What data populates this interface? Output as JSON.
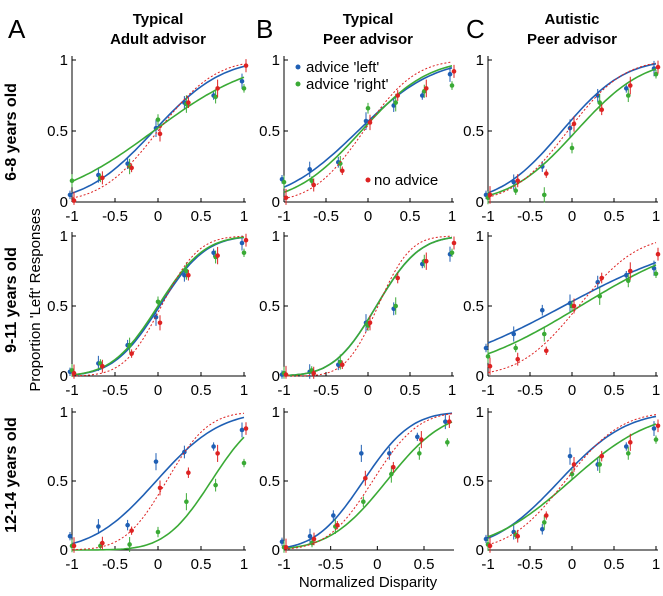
{
  "figure": {
    "panel_letters": [
      "A",
      "B",
      "C"
    ],
    "column_titles": [
      [
        "Typical",
        "Adult advisor"
      ],
      [
        "Typical",
        "Peer advisor"
      ],
      [
        "Autistic",
        "Peer advisor"
      ]
    ],
    "row_labels": [
      "6-8 years old",
      "9-11 years old",
      "12-14 years old"
    ],
    "xlabel": "Normalized Disparity",
    "ylabel": "Proportion 'Left' Responses",
    "x_ticks": [
      "-1",
      "-0.5",
      "0",
      "0.5",
      "1"
    ],
    "y_ticks": [
      "0",
      "0.5",
      "1"
    ],
    "legend": {
      "left": "advice 'left'",
      "right": "advice 'right'",
      "none": "no advice"
    }
  },
  "colors": {
    "left": "#1f5fb4",
    "right": "#3aaa35",
    "none": "#dd2222",
    "axis": "#000000"
  },
  "chart_data": [
    {
      "type": "line",
      "row": 0,
      "col": 0,
      "xlim": [
        -1,
        1
      ],
      "ylim": [
        0,
        1
      ],
      "x": [
        -1,
        -0.67,
        -0.33,
        0,
        0.33,
        0.67,
        1
      ],
      "series": [
        {
          "name": "advice 'left'",
          "values": [
            0.05,
            0.19,
            0.27,
            0.52,
            0.7,
            0.75,
            0.85
          ],
          "fit": {
            "mu": -0.05,
            "sigma": 0.62
          }
        },
        {
          "name": "advice 'right'",
          "values": [
            0.15,
            0.17,
            0.25,
            0.58,
            0.69,
            0.74,
            0.8
          ],
          "fit": {
            "mu": -0.05,
            "sigma": 0.9
          }
        },
        {
          "name": "no advice",
          "values": [
            0.01,
            0.17,
            0.24,
            0.48,
            0.7,
            0.8,
            0.96
          ],
          "fit": {
            "mu": 0.0,
            "sigma": 0.52
          }
        }
      ]
    },
    {
      "type": "line",
      "row": 0,
      "col": 1,
      "xlim": [
        -1,
        1
      ],
      "ylim": [
        0,
        1
      ],
      "x": [
        -1,
        -0.67,
        -0.33,
        0,
        0.33,
        0.67,
        1
      ],
      "series": [
        {
          "name": "advice 'left'",
          "values": [
            0.16,
            0.23,
            0.28,
            0.57,
            0.68,
            0.75,
            0.9
          ],
          "fit": {
            "mu": -0.12,
            "sigma": 0.7
          }
        },
        {
          "name": "advice 'right'",
          "values": [
            0.14,
            0.15,
            0.27,
            0.66,
            0.7,
            0.78,
            0.82
          ],
          "fit": {
            "mu": -0.08,
            "sigma": 0.62
          }
        },
        {
          "name": "no advice",
          "values": [
            0.03,
            0.12,
            0.22,
            0.56,
            0.75,
            0.8,
            0.92
          ],
          "fit": {
            "mu": -0.05,
            "sigma": 0.48
          }
        }
      ]
    },
    {
      "type": "line",
      "row": 0,
      "col": 2,
      "xlim": [
        -1,
        1
      ],
      "ylim": [
        0,
        1
      ],
      "x": [
        -1,
        -0.67,
        -0.33,
        0,
        0.33,
        0.67,
        1
      ],
      "series": [
        {
          "name": "advice 'left'",
          "values": [
            0.05,
            0.14,
            0.25,
            0.52,
            0.75,
            0.8,
            0.94
          ],
          "fit": {
            "mu": -0.12,
            "sigma": 0.58
          }
        },
        {
          "name": "advice 'right'",
          "values": [
            0.03,
            0.08,
            0.05,
            0.38,
            0.7,
            0.75,
            0.9
          ],
          "fit": {
            "mu": 0.05,
            "sigma": 0.62
          }
        },
        {
          "name": "no advice",
          "values": [
            0.05,
            0.15,
            0.2,
            0.55,
            0.65,
            0.82,
            0.95
          ],
          "fit": {
            "mu": -0.05,
            "sigma": 0.52
          }
        }
      ]
    },
    {
      "type": "line",
      "row": 1,
      "col": 0,
      "xlim": [
        -1,
        1
      ],
      "ylim": [
        0,
        1
      ],
      "x": [
        -1,
        -0.67,
        -0.33,
        0,
        0.33,
        0.67,
        1
      ],
      "series": [
        {
          "name": "advice 'left'",
          "values": [
            0.03,
            0.09,
            0.22,
            0.42,
            0.72,
            0.88,
            0.95
          ],
          "fit": {
            "mu": 0.02,
            "sigma": 0.42
          }
        },
        {
          "name": "advice 'right'",
          "values": [
            0.04,
            0.09,
            0.22,
            0.53,
            0.75,
            0.85,
            0.88
          ],
          "fit": {
            "mu": 0.0,
            "sigma": 0.42
          }
        },
        {
          "name": "no advice",
          "values": [
            0.02,
            0.07,
            0.16,
            0.38,
            0.72,
            0.86,
            0.97
          ],
          "fit": {
            "mu": 0.04,
            "sigma": 0.34
          }
        }
      ]
    },
    {
      "type": "line",
      "row": 1,
      "col": 1,
      "xlim": [
        -1,
        1
      ],
      "ylim": [
        0,
        1
      ],
      "x": [
        -1,
        -0.67,
        -0.33,
        0,
        0.33,
        0.67,
        1
      ],
      "series": [
        {
          "name": "advice 'left'",
          "values": [
            0.01,
            0.03,
            0.08,
            0.38,
            0.48,
            0.8,
            0.87
          ],
          "fit": {
            "mu": 0.1,
            "sigma": 0.4
          }
        },
        {
          "name": "advice 'right'",
          "values": [
            0.02,
            0.04,
            0.1,
            0.36,
            0.5,
            0.82,
            0.88
          ],
          "fit": {
            "mu": 0.1,
            "sigma": 0.4
          }
        },
        {
          "name": "no advice",
          "values": [
            0.01,
            0.02,
            0.08,
            0.38,
            0.7,
            0.82,
            0.95
          ],
          "fit": {
            "mu": 0.12,
            "sigma": 0.3
          }
        }
      ]
    },
    {
      "type": "line",
      "row": 1,
      "col": 2,
      "xlim": [
        -1,
        1
      ],
      "ylim": [
        0,
        1
      ],
      "x": [
        -1,
        -0.67,
        -0.33,
        0,
        0.33,
        0.67,
        1
      ],
      "series": [
        {
          "name": "advice 'left'",
          "values": [
            0.2,
            0.3,
            0.47,
            0.52,
            0.67,
            0.72,
            0.77
          ],
          "fit": {
            "mu": -0.1,
            "sigma": 1.25
          }
        },
        {
          "name": "advice 'right'",
          "values": [
            0.14,
            0.2,
            0.3,
            0.5,
            0.57,
            0.68,
            0.73
          ],
          "fit": {
            "mu": 0.1,
            "sigma": 1.1
          }
        },
        {
          "name": "no advice",
          "values": [
            0.07,
            0.12,
            0.18,
            0.5,
            0.7,
            0.75,
            0.87
          ],
          "fit": {
            "mu": 0.08,
            "sigma": 0.55
          }
        }
      ]
    },
    {
      "type": "line",
      "row": 2,
      "col": 0,
      "xlim": [
        -1,
        1
      ],
      "ylim": [
        0,
        1
      ],
      "x": [
        -1,
        -0.67,
        -0.33,
        0,
        0.33,
        0.67,
        1
      ],
      "series": [
        {
          "name": "advice 'left'",
          "values": [
            0.1,
            0.17,
            0.18,
            0.64,
            0.71,
            0.75,
            0.87
          ],
          "fit": {
            "mu": -0.02,
            "sigma": 0.58
          }
        },
        {
          "name": "advice 'right'",
          "values": [
            0.03,
            0.03,
            0.04,
            0.13,
            0.35,
            0.47,
            0.63
          ],
          "fit": {
            "mu": 0.62,
            "sigma": 0.42
          }
        },
        {
          "name": "no advice",
          "values": [
            0.03,
            0.05,
            0.14,
            0.45,
            0.56,
            0.7,
            0.88
          ],
          "fit": {
            "mu": 0.1,
            "sigma": 0.38
          }
        }
      ]
    },
    {
      "type": "line",
      "row": 2,
      "col": 1,
      "xlim": [
        -1,
        0.8
      ],
      "ylim": [
        0,
        1
      ],
      "x": [
        -1,
        -0.7,
        -0.45,
        -0.15,
        0.15,
        0.45,
        0.75
      ],
      "series": [
        {
          "name": "advice 'left'",
          "values": [
            0.06,
            0.1,
            0.25,
            0.7,
            0.7,
            0.82,
            0.93
          ],
          "fit": {
            "mu": -0.15,
            "sigma": 0.4
          }
        },
        {
          "name": "advice 'right'",
          "values": [
            0.02,
            0.05,
            0.17,
            0.35,
            0.55,
            0.7,
            0.78
          ],
          "fit": {
            "mu": 0.1,
            "sigma": 0.48
          }
        },
        {
          "name": "no advice",
          "values": [
            0.02,
            0.08,
            0.18,
            0.52,
            0.6,
            0.8,
            0.93
          ],
          "fit": {
            "mu": -0.05,
            "sigma": 0.38
          }
        }
      ]
    },
    {
      "type": "line",
      "row": 2,
      "col": 2,
      "xlim": [
        -1,
        1
      ],
      "ylim": [
        0,
        1
      ],
      "x": [
        -1,
        -0.67,
        -0.33,
        0,
        0.33,
        0.67,
        1
      ],
      "series": [
        {
          "name": "advice 'left'",
          "values": [
            0.08,
            0.13,
            0.15,
            0.68,
            0.62,
            0.75,
            0.88
          ],
          "fit": {
            "mu": -0.15,
            "sigma": 0.62
          }
        },
        {
          "name": "advice 'right'",
          "values": [
            0.04,
            0.11,
            0.2,
            0.55,
            0.62,
            0.7,
            0.8
          ],
          "fit": {
            "mu": -0.02,
            "sigma": 0.75
          }
        },
        {
          "name": "no advice",
          "values": [
            0.03,
            0.1,
            0.25,
            0.62,
            0.68,
            0.78,
            0.9
          ],
          "fit": {
            "mu": -0.08,
            "sigma": 0.52
          }
        }
      ]
    }
  ]
}
